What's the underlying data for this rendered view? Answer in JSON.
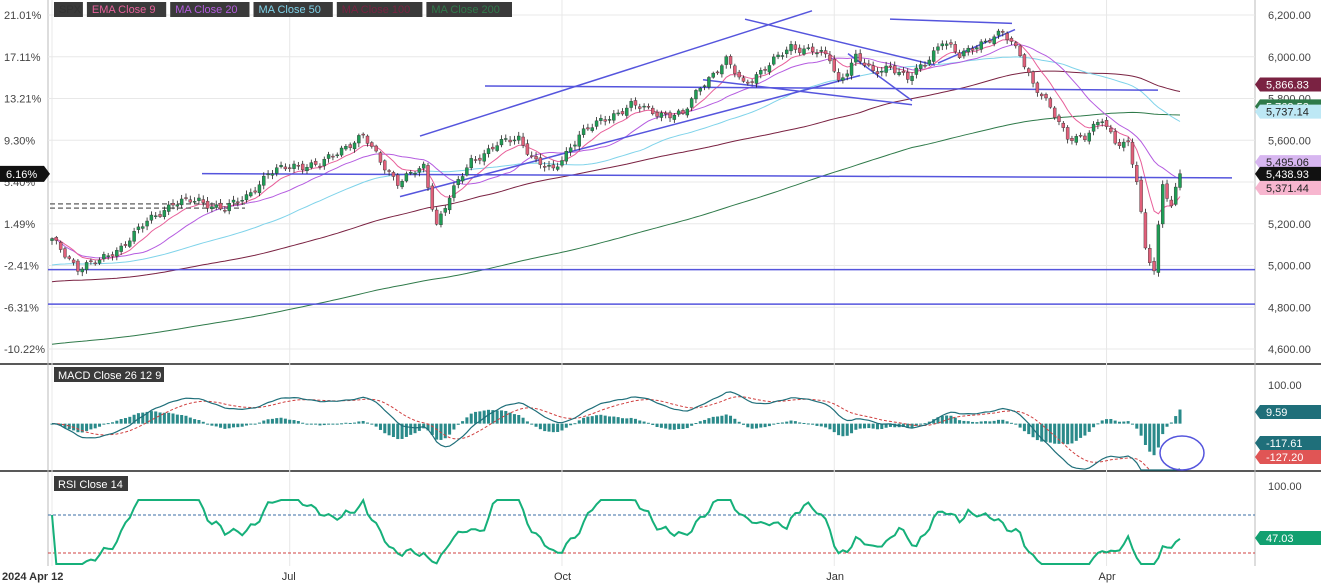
{
  "chart_data": {
    "type": "candlestick",
    "price_pane": {
      "legend": [
        {
          "label": "SPX",
          "color": "#333333"
        },
        {
          "label": "EMA Close 9",
          "color": "#e8609a"
        },
        {
          "label": "MA Close 20",
          "color": "#b55ce0"
        },
        {
          "label": "MA Close 50",
          "color": "#7fd3ea"
        },
        {
          "label": "MA Close 100",
          "color": "#7a2242"
        },
        {
          "label": "MA Close 200",
          "color": "#2f7a4a"
        }
      ],
      "y_ticks_right": [
        "6,200.00",
        "6,000.00",
        "5,800.00",
        "5,600.00",
        "5,400.00",
        "5,200.00",
        "5,000.00",
        "4,800.00",
        "4,600.00"
      ],
      "y_ticks_left": [
        "21.01%",
        "17.11%",
        "13.21%",
        "9.30%",
        "5.40%",
        "1.49%",
        "-2.41%",
        "-6.31%",
        "-10.22%"
      ],
      "ylim": [
        4600,
        6200
      ],
      "last_pct_label": "6.16%",
      "price_tags": [
        {
          "value": 5866.83,
          "label": "5,866.83",
          "color": "#7a2242",
          "text_color": "#ffffff"
        },
        {
          "value": 5762.52,
          "label": "5,762.52",
          "color": "#2f7a4a",
          "text_color": "#ffffff"
        },
        {
          "value": 5737.14,
          "label": "5,737.14",
          "color": "#bde8f5",
          "text_color": "#222222"
        },
        {
          "value": 5495.06,
          "label": "5,495.06",
          "color": "#d7b6f0",
          "text_color": "#222222"
        },
        {
          "value": 5438.93,
          "label": "5,438.93",
          "color": "#111111",
          "text_color": "#ffffff"
        },
        {
          "value": 5371.44,
          "label": "5,371.44",
          "color": "#f7b6cf",
          "text_color": "#222222"
        }
      ],
      "ohlc_anchors": [
        {
          "i": 0,
          "c": 5120
        },
        {
          "i": 6,
          "c": 4990
        },
        {
          "i": 11,
          "c": 5020
        },
        {
          "i": 16,
          "c": 5090
        },
        {
          "i": 22,
          "c": 5210
        },
        {
          "i": 28,
          "c": 5300
        },
        {
          "i": 34,
          "c": 5310
        },
        {
          "i": 40,
          "c": 5270
        },
        {
          "i": 45,
          "c": 5330
        },
        {
          "i": 50,
          "c": 5440
        },
        {
          "i": 56,
          "c": 5480
        },
        {
          "i": 62,
          "c": 5480
        },
        {
          "i": 67,
          "c": 5560
        },
        {
          "i": 72,
          "c": 5620
        },
        {
          "i": 76,
          "c": 5500
        },
        {
          "i": 80,
          "c": 5400
        },
        {
          "i": 86,
          "c": 5470
        },
        {
          "i": 89,
          "c": 5200
        },
        {
          "i": 92,
          "c": 5330
        },
        {
          "i": 97,
          "c": 5500
        },
        {
          "i": 103,
          "c": 5580
        },
        {
          "i": 108,
          "c": 5610
        },
        {
          "i": 112,
          "c": 5500
        },
        {
          "i": 116,
          "c": 5450
        },
        {
          "i": 122,
          "c": 5630
        },
        {
          "i": 128,
          "c": 5700
        },
        {
          "i": 134,
          "c": 5770
        },
        {
          "i": 140,
          "c": 5730
        },
        {
          "i": 146,
          "c": 5720
        },
        {
          "i": 150,
          "c": 5860
        },
        {
          "i": 156,
          "c": 5980
        },
        {
          "i": 160,
          "c": 5870
        },
        {
          "i": 166,
          "c": 5960
        },
        {
          "i": 171,
          "c": 6050
        },
        {
          "i": 176,
          "c": 6030
        },
        {
          "i": 180,
          "c": 5990
        },
        {
          "i": 182,
          "c": 5880
        },
        {
          "i": 186,
          "c": 6000
        },
        {
          "i": 190,
          "c": 5920
        },
        {
          "i": 194,
          "c": 5960
        },
        {
          "i": 198,
          "c": 5890
        },
        {
          "i": 202,
          "c": 5970
        },
        {
          "i": 206,
          "c": 6080
        },
        {
          "i": 210,
          "c": 6000
        },
        {
          "i": 214,
          "c": 6060
        },
        {
          "i": 220,
          "c": 6110
        },
        {
          "i": 224,
          "c": 6020
        },
        {
          "i": 227,
          "c": 5870
        },
        {
          "i": 231,
          "c": 5750
        },
        {
          "i": 235,
          "c": 5620
        },
        {
          "i": 239,
          "c": 5610
        },
        {
          "i": 243,
          "c": 5700
        },
        {
          "i": 246,
          "c": 5600
        },
        {
          "i": 249,
          "c": 5580
        },
        {
          "i": 251,
          "c": 5400
        },
        {
          "i": 253,
          "c": 5075
        },
        {
          "i": 255,
          "c": 4980
        },
        {
          "i": 257,
          "c": 5400
        },
        {
          "i": 259,
          "c": 5280
        },
        {
          "i": 261,
          "c": 5440
        }
      ],
      "bars_count": 262,
      "horizontal_levels": [
        4980,
        4815
      ],
      "dashed_levels": [
        5275,
        5295
      ]
    },
    "x_ticks": [
      "2024 Apr 12",
      "Jul",
      "Oct",
      "Jan",
      "Apr"
    ],
    "x_tick_index": [
      0,
      55,
      118,
      181,
      244
    ],
    "macd_pane": {
      "label": "MACD Close 26 12 9",
      "y_ticks": [
        "100.00",
        "0.00"
      ],
      "ylim": [
        -120,
        120
      ],
      "tags": [
        {
          "value": 9.59,
          "label": "9.59",
          "color": "#1f6f7a",
          "text_color": "#ffffff"
        },
        {
          "value": -117.61,
          "label": "-117.61",
          "color": "#1f6f7a",
          "text_color": "#ffffff"
        },
        {
          "value": -127.2,
          "label": "-127.20",
          "color": "#e05555",
          "text_color": "#ffffff"
        }
      ]
    },
    "rsi_pane": {
      "label": "RSI Close 14",
      "y_ticks": [
        "100.00"
      ],
      "upper": 70,
      "lower": 30,
      "tags": [
        {
          "value": 47.03,
          "label": "47.03",
          "color": "#12a070",
          "text_color": "#ffffff"
        }
      ]
    },
    "colors": {
      "up": "#1f9d55",
      "down": "#e0607a",
      "trendline": "#5555dd",
      "macd_line": "#1f6f7a",
      "signal_line": "#d04040",
      "rsi_line": "#16b07a",
      "grid": "#e8e8e8"
    }
  }
}
